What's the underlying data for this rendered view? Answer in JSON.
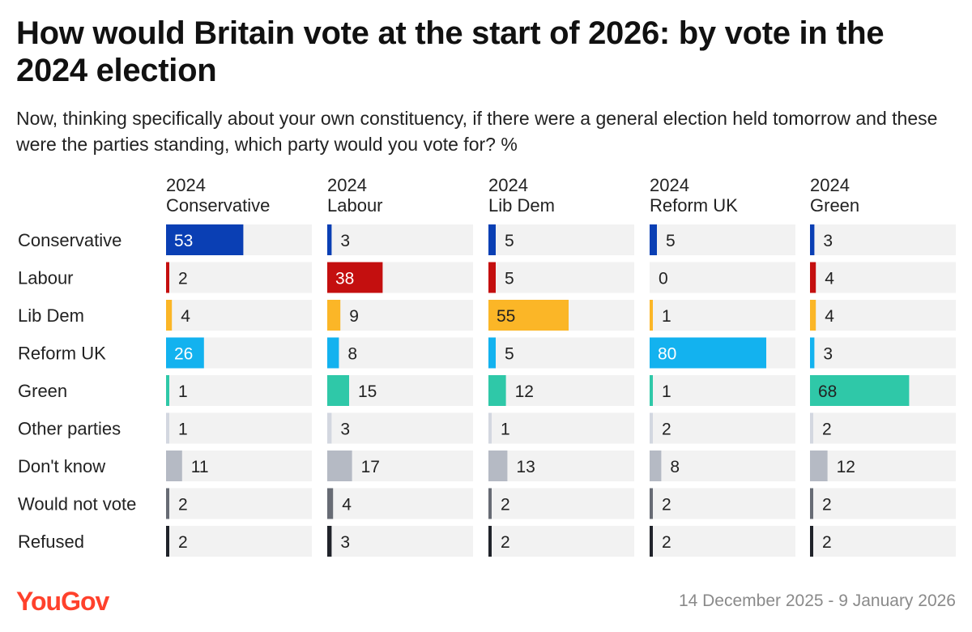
{
  "title": "How would Britain vote at the start of 2026: by vote in the 2024 election",
  "subtitle": "Now, thinking specifically about your own constituency, if there were a general election held tomorrow and these were the parties standing, which party would you vote for? %",
  "brand": "YouGov",
  "date_range": "14 December 2025 - 9 January 2026",
  "colors": {
    "Conservative": "#0a3fb4",
    "Labour": "#c40f0f",
    "Lib Dem": "#fbb627",
    "Reform UK": "#13b2ef",
    "Green": "#2fc8a8",
    "Other parties": "#d3d7e0",
    "Don't know": "#b5bac4",
    "Would not vote": "#676b74",
    "Refused": "#20232a",
    "track": "#f2f2f2"
  },
  "chart_data": {
    "type": "bar",
    "orientation": "horizontal",
    "layout": "small-multiples",
    "title": "How would Britain vote at the start of 2026: by vote in the 2024 election",
    "categories": [
      "Conservative",
      "Labour",
      "Lib Dem",
      "Reform UK",
      "Green",
      "Other parties",
      "Don't know",
      "Would not vote",
      "Refused"
    ],
    "xlim": [
      0,
      100
    ],
    "unit": "%",
    "series": [
      {
        "name": "2024 Conservative",
        "label_lines": [
          "2024",
          "Conservative"
        ],
        "values": [
          53,
          2,
          4,
          26,
          1,
          1,
          11,
          2,
          2
        ]
      },
      {
        "name": "2024 Labour",
        "label_lines": [
          "2024",
          "Labour"
        ],
        "values": [
          3,
          38,
          9,
          8,
          15,
          3,
          17,
          4,
          3
        ]
      },
      {
        "name": "2024 Lib Dem",
        "label_lines": [
          "2024",
          "Lib Dem"
        ],
        "values": [
          5,
          5,
          55,
          5,
          12,
          1,
          13,
          2,
          2
        ]
      },
      {
        "name": "2024 Reform UK",
        "label_lines": [
          "2024",
          "Reform UK"
        ],
        "values": [
          5,
          0,
          1,
          80,
          1,
          2,
          8,
          2,
          2
        ]
      },
      {
        "name": "2024 Green",
        "label_lines": [
          "2024",
          "Green"
        ],
        "values": [
          3,
          4,
          4,
          3,
          68,
          2,
          12,
          2,
          2
        ]
      }
    ]
  }
}
